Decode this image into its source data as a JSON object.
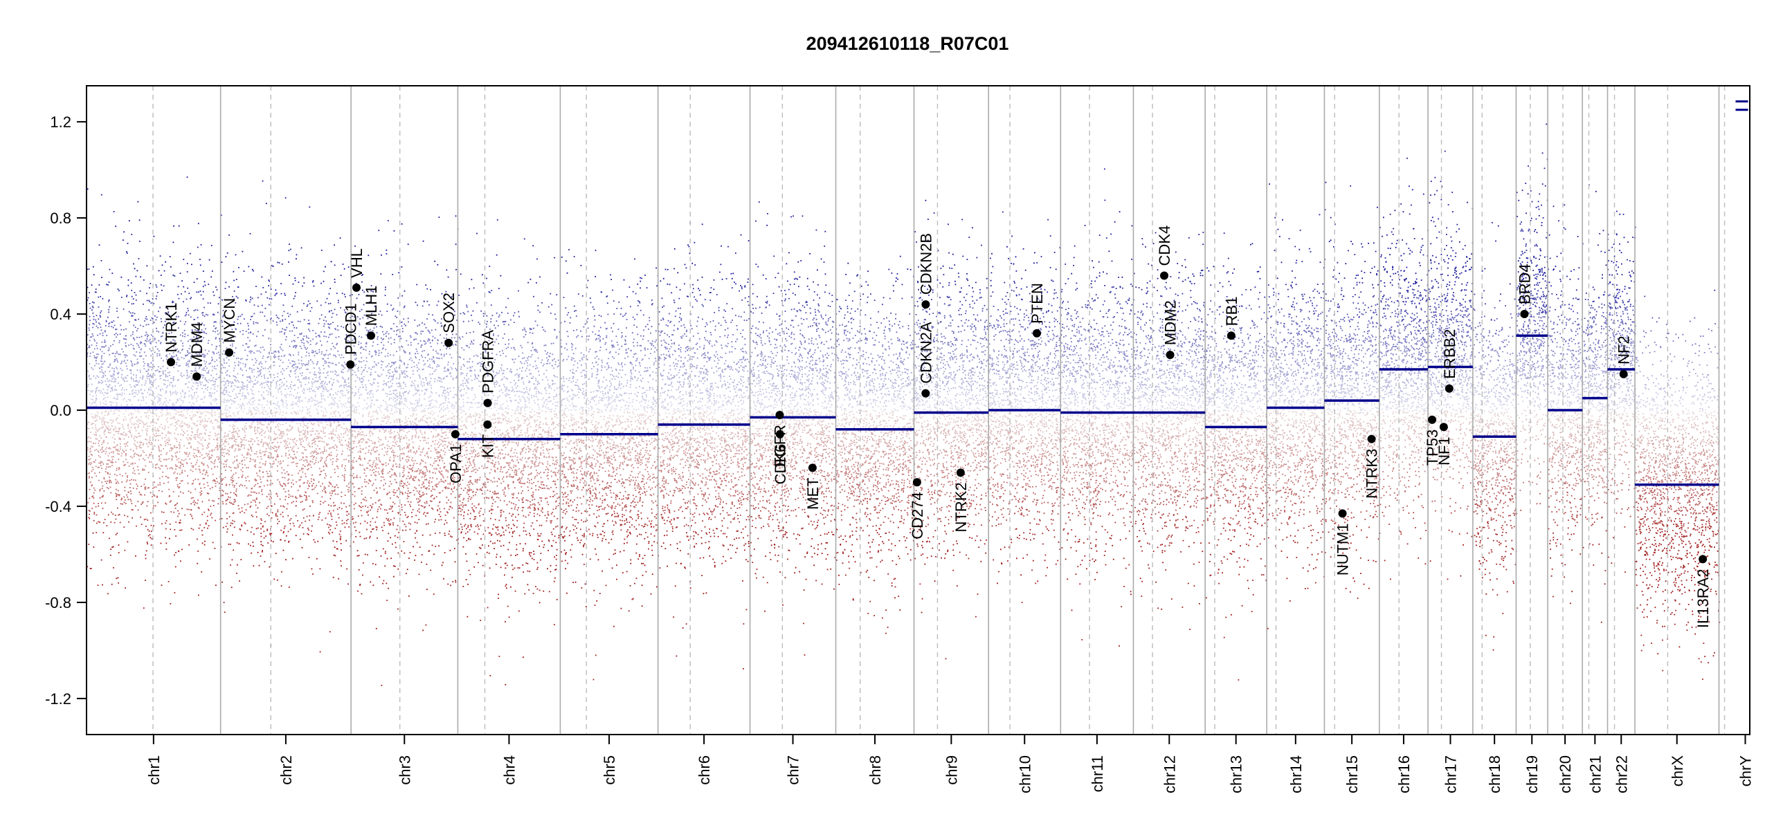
{
  "chart_data": {
    "type": "scatter",
    "title": "209412610118_R07C01",
    "xlabel": "",
    "ylabel": "",
    "ylim": [
      -1.35,
      1.35
    ],
    "yticks": [
      1.2,
      0.8,
      0.4,
      0.0,
      -0.4,
      -0.8,
      -1.2
    ],
    "ytick_labels": [
      "1.2",
      "0.8",
      "0.4",
      "0.0",
      "-0.4",
      "-0.8",
      "-1.2"
    ],
    "grid": false,
    "colors": {
      "positive": "#1a1aa0",
      "negative": "#a01a1a",
      "segment": "#00008b",
      "boundary": "#aaaaaa",
      "centromere": "#bbbbbb"
    },
    "chromosomes": [
      {
        "name": "chr1",
        "start": 0.0,
        "end": 248.9,
        "centromere": 123.4,
        "segment": 0.01
      },
      {
        "name": "chr2",
        "start": 248.9,
        "end": 491.1,
        "centromere": 342.2,
        "segment": -0.04
      },
      {
        "name": "chr3",
        "start": 491.1,
        "end": 689.4,
        "centromere": 581.8,
        "segment": -0.07
      },
      {
        "name": "chr4",
        "start": 689.4,
        "end": 879.6,
        "centromere": 739.6,
        "segment": -0.12
      },
      {
        "name": "chr5",
        "start": 879.6,
        "end": 1061.1,
        "centromere": 928.1,
        "segment": -0.1
      },
      {
        "name": "chr6",
        "start": 1061.1,
        "end": 1231.9,
        "centromere": 1120.9,
        "segment": -0.06
      },
      {
        "name": "chr7",
        "start": 1231.9,
        "end": 1391.2,
        "centromere": 1292.0,
        "segment": -0.03
      },
      {
        "name": "chr8",
        "start": 1391.2,
        "end": 1536.4,
        "centromere": 1436.4,
        "segment": -0.08
      },
      {
        "name": "chr9",
        "start": 1536.4,
        "end": 1674.8,
        "centromere": 1580.0,
        "segment": -0.01
      },
      {
        "name": "chr10",
        "start": 1674.8,
        "end": 1808.6,
        "centromere": 1714.5,
        "segment": 0.0
      },
      {
        "name": "chr11",
        "start": 1808.6,
        "end": 1943.7,
        "centromere": 1862.3,
        "segment": -0.01
      },
      {
        "name": "chr12",
        "start": 1943.7,
        "end": 2077.0,
        "centromere": 1979.2,
        "segment": -0.01
      },
      {
        "name": "chr13",
        "start": 2077.0,
        "end": 2191.4,
        "centromere": 2094.8,
        "segment": -0.07
      },
      {
        "name": "chr14",
        "start": 2191.4,
        "end": 2298.4,
        "centromere": 2208.6,
        "segment": 0.01
      },
      {
        "name": "chr15",
        "start": 2298.4,
        "end": 2400.4,
        "centromere": 2317.4,
        "segment": 0.04
      },
      {
        "name": "chr16",
        "start": 2400.4,
        "end": 2490.7,
        "centromere": 2436.9,
        "segment": 0.17
      },
      {
        "name": "chr17",
        "start": 2490.7,
        "end": 2574.0,
        "centromere": 2515.7,
        "segment": 0.18
      },
      {
        "name": "chr18",
        "start": 2574.0,
        "end": 2654.4,
        "centromere": 2591.2,
        "segment": -0.11
      },
      {
        "name": "chr19",
        "start": 2654.4,
        "end": 2713.0,
        "centromere": 2680.6,
        "segment": 0.31
      },
      {
        "name": "chr20",
        "start": 2713.0,
        "end": 2777.4,
        "centromere": 2741.2,
        "segment": 0.0
      },
      {
        "name": "chr21",
        "start": 2777.4,
        "end": 2824.1,
        "centromere": 2789.4,
        "segment": 0.05
      },
      {
        "name": "chr22",
        "start": 2824.1,
        "end": 2874.9,
        "centromere": 2837.0,
        "segment": 0.17
      },
      {
        "name": "chrX",
        "start": 2874.9,
        "end": 3031.0,
        "centromere": 2935.8,
        "segment": -0.31
      },
      {
        "name": "chrY",
        "start": 3031.0,
        "end": 3088.2,
        "centromere": 3041.4,
        "segment": 1.27
      }
    ],
    "genes": [
      {
        "label": "NTRK1",
        "x": 156.8,
        "y": 0.2,
        "side": "above"
      },
      {
        "label": "MDM4",
        "x": 204.5,
        "y": 0.14,
        "side": "above"
      },
      {
        "label": "MYCN",
        "x": 264.8,
        "y": 0.24,
        "side": "above"
      },
      {
        "label": "PDCD1",
        "x": 490.0,
        "y": 0.19,
        "side": "above"
      },
      {
        "label": "VHL",
        "x": 501.2,
        "y": 0.51,
        "side": "above"
      },
      {
        "label": "MLH1",
        "x": 528.2,
        "y": 0.31,
        "side": "above"
      },
      {
        "label": "SOX2",
        "x": 672.3,
        "y": 0.28,
        "side": "above"
      },
      {
        "label": "OPA1",
        "x": 684.8,
        "y": -0.1,
        "side": "below"
      },
      {
        "label": "KIT",
        "x": 744.5,
        "y": -0.06,
        "side": "below"
      },
      {
        "label": "PDGFRA",
        "x": 744.8,
        "y": 0.03,
        "side": "above"
      },
      {
        "label": "EGFR",
        "x": 1287.0,
        "y": -0.02,
        "side": "below"
      },
      {
        "label": "CDK6",
        "x": 1287.5,
        "y": -0.1,
        "side": "below"
      },
      {
        "label": "MET",
        "x": 1348.0,
        "y": -0.24,
        "side": "below"
      },
      {
        "label": "CD274",
        "x": 1542.0,
        "y": -0.3,
        "side": "below"
      },
      {
        "label": "CDKN2A",
        "x": 1558.0,
        "y": 0.07,
        "side": "above"
      },
      {
        "label": "CDKN2B",
        "x": 1558.1,
        "y": 0.44,
        "side": "above"
      },
      {
        "label": "NTRK2",
        "x": 1623.0,
        "y": -0.26,
        "side": "below"
      },
      {
        "label": "PTEN",
        "x": 1764.5,
        "y": 0.32,
        "side": "above"
      },
      {
        "label": "CDK4",
        "x": 2001.0,
        "y": 0.56,
        "side": "above"
      },
      {
        "label": "MDM2",
        "x": 2012.0,
        "y": 0.23,
        "side": "above"
      },
      {
        "label": "RB1",
        "x": 2125.5,
        "y": 0.31,
        "side": "above"
      },
      {
        "label": "NUTM1",
        "x": 2332.0,
        "y": -0.43,
        "side": "below"
      },
      {
        "label": "NTRK3",
        "x": 2386.0,
        "y": -0.12,
        "side": "below"
      },
      {
        "label": "TP53",
        "x": 2498.4,
        "y": -0.04,
        "side": "below"
      },
      {
        "label": "NF1",
        "x": 2520.0,
        "y": -0.07,
        "side": "below"
      },
      {
        "label": "ERBB2",
        "x": 2530.2,
        "y": 0.09,
        "side": "above"
      },
      {
        "label": "BRD4",
        "x": 2669.8,
        "y": 0.4,
        "side": "above"
      },
      {
        "label": "NF2",
        "x": 2853.9,
        "y": 0.15,
        "side": "above"
      },
      {
        "label": "IL13RA2",
        "x": 3001.0,
        "y": -0.62,
        "side": "below"
      }
    ]
  }
}
